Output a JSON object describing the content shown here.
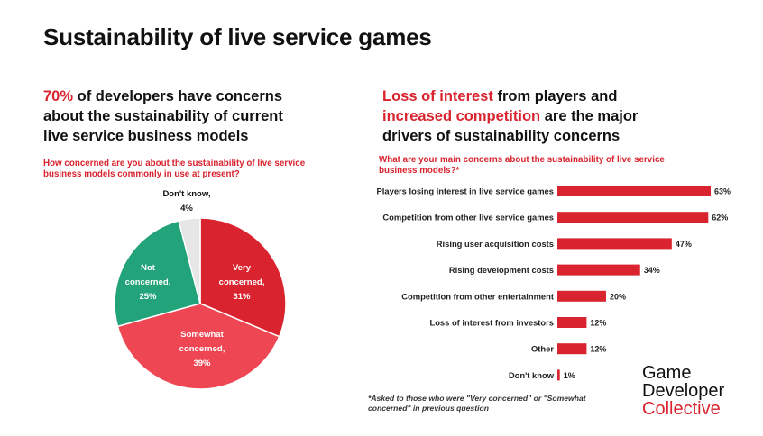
{
  "title": "Sustainability of live service games",
  "left": {
    "headline_red": "70%",
    "headline_rest_1": " of developers have concerns",
    "headline_line2": "about the sustainability of current",
    "headline_line3": "live service business models",
    "question_line1": "How concerned are you about the sustainability of live service",
    "question_line2": "business models commonly in use at present?"
  },
  "right": {
    "headline_red1": "Loss of interest",
    "headline_rest1": " from players and",
    "headline_red2": "increased competition",
    "headline_rest2": " are the major",
    "headline_line3": "drivers of sustainability concerns",
    "question_line1": "What are your main concerns about the sustainability of live service",
    "question_line2": "business models?*"
  },
  "footnote_line1": "*Asked to those who were \"Very concerned\" or \"Somewhat",
  "footnote_line2": "concerned\" in previous question",
  "logo": {
    "line1": "Game",
    "line2": "Developer",
    "line3": "Collective"
  },
  "colors": {
    "red": "#d9232e",
    "pink": "#ef4654",
    "teal": "#22a37a",
    "grey": "#e6e6e6"
  },
  "chart_data": [
    {
      "type": "pie",
      "slices": [
        {
          "label_lines": [
            "Very",
            "concerned,",
            "31%"
          ],
          "value": 31,
          "color": "#d9232e"
        },
        {
          "label_lines": [
            "Somewhat",
            "concerned,",
            "39%"
          ],
          "value": 39,
          "color": "#ef4654"
        },
        {
          "label_lines": [
            "Not",
            "concerned,",
            "25%"
          ],
          "value": 25,
          "color": "#22a37a"
        },
        {
          "label_lines": [
            "Don't know,",
            "4%"
          ],
          "value": 4,
          "color": "#e6e6e6"
        }
      ]
    },
    {
      "type": "bar",
      "orientation": "horizontal",
      "categories": [
        "Players losing interest in live service games",
        "Competition from other live service games",
        "Rising user acquisition costs",
        "Rising development costs",
        "Competition from other entertainment",
        "Loss of interest from investors",
        "Other",
        "Don't know"
      ],
      "values": [
        63,
        62,
        47,
        34,
        20,
        12,
        12,
        1
      ],
      "value_labels": [
        "63%",
        "62%",
        "47%",
        "34%",
        "20%",
        "12%",
        "12%",
        "1%"
      ],
      "bar_color": "#d9232e",
      "xlim": [
        0,
        63
      ]
    }
  ]
}
